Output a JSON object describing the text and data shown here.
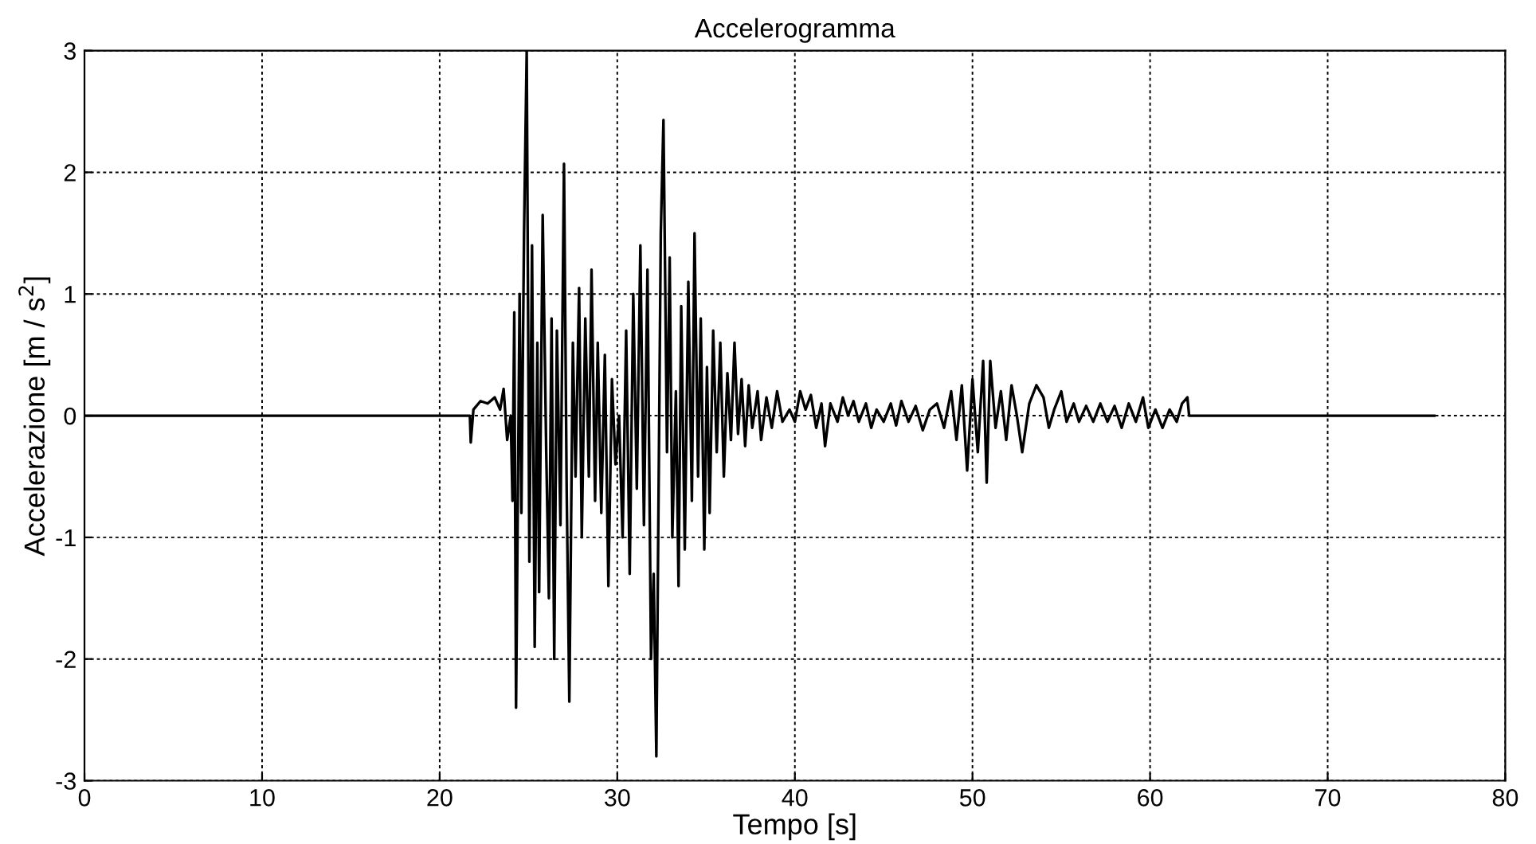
{
  "chart_data": {
    "type": "line",
    "title": "Accelerogramma",
    "xlabel": "Tempo [s]",
    "ylabel": "Accelerazione [m / s$^{2}$]",
    "xlim": [
      0,
      80
    ],
    "xticks": [
      0,
      10,
      20,
      30,
      40,
      50,
      60,
      70,
      80
    ],
    "ylim": [
      -3,
      3
    ],
    "yticks": [
      -3,
      -2,
      -1,
      0,
      1,
      2,
      3
    ],
    "grid": true,
    "line_style": "solid",
    "marker": "none",
    "series": [
      {
        "color": "#000000",
        "x": [
          0,
          21.7,
          21.75,
          21.9,
          22.3,
          22.7,
          23.1,
          23.4,
          23.6,
          23.8,
          24.0,
          24.1,
          24.2,
          24.3,
          24.5,
          24.6,
          24.75,
          24.9,
          25.05,
          25.2,
          25.35,
          25.5,
          25.6,
          25.8,
          26.0,
          26.15,
          26.3,
          26.45,
          26.6,
          26.8,
          27.0,
          27.15,
          27.3,
          27.5,
          27.65,
          27.85,
          28.0,
          28.2,
          28.4,
          28.55,
          28.75,
          28.9,
          29.1,
          29.3,
          29.5,
          29.7,
          29.9,
          30.1,
          30.3,
          30.5,
          30.7,
          30.9,
          31.1,
          31.3,
          31.5,
          31.7,
          31.9,
          32.05,
          32.2,
          32.45,
          32.6,
          32.8,
          32.95,
          33.1,
          33.3,
          33.45,
          33.6,
          33.8,
          34.0,
          34.2,
          34.35,
          34.55,
          34.7,
          34.9,
          35.05,
          35.2,
          35.4,
          35.6,
          35.8,
          36.0,
          36.2,
          36.4,
          36.6,
          36.8,
          37.0,
          37.2,
          37.4,
          37.6,
          37.9,
          38.1,
          38.4,
          38.7,
          39.0,
          39.3,
          39.7,
          40.0,
          40.3,
          40.6,
          40.9,
          41.2,
          41.5,
          41.7,
          42.0,
          42.4,
          42.7,
          43.0,
          43.3,
          43.6,
          44.0,
          44.3,
          44.6,
          45.0,
          45.4,
          45.7,
          46.0,
          46.4,
          46.8,
          47.2,
          47.6,
          48.0,
          48.4,
          48.8,
          49.1,
          49.4,
          49.7,
          50.0,
          50.3,
          50.6,
          50.8,
          51.0,
          51.3,
          51.6,
          51.9,
          52.2,
          52.5,
          52.8,
          53.2,
          53.6,
          54.0,
          54.3,
          54.6,
          55.0,
          55.3,
          55.7,
          56.0,
          56.4,
          56.8,
          57.2,
          57.6,
          58.0,
          58.4,
          58.8,
          59.2,
          59.6,
          59.9,
          60.3,
          60.7,
          61.1,
          61.5,
          61.8,
          62.1,
          62.2,
          76
        ],
        "values": [
          0,
          0,
          -0.22,
          0.05,
          0.12,
          0.1,
          0.15,
          0.05,
          0.22,
          -0.2,
          0.0,
          -0.7,
          0.85,
          -2.4,
          1.0,
          -0.8,
          1.5,
          3.0,
          -1.2,
          1.4,
          -1.9,
          0.6,
          -1.45,
          1.65,
          -0.3,
          -1.5,
          0.8,
          -2.0,
          0.7,
          -0.9,
          2.07,
          -0.6,
          -2.35,
          0.6,
          -0.5,
          1.05,
          -1.0,
          0.8,
          -0.5,
          1.2,
          -0.7,
          0.6,
          -0.8,
          0.5,
          -1.4,
          0.3,
          -0.4,
          0.0,
          -1.0,
          0.7,
          -1.3,
          1.0,
          -0.6,
          1.4,
          -0.9,
          1.2,
          -2.0,
          -1.3,
          -2.8,
          1.5,
          2.43,
          -0.3,
          1.3,
          -1.0,
          0.2,
          -1.4,
          0.9,
          -1.1,
          1.1,
          -0.7,
          1.5,
          -0.5,
          0.8,
          -1.1,
          0.4,
          -0.8,
          0.7,
          -0.3,
          0.6,
          -0.5,
          0.35,
          -0.2,
          0.6,
          -0.15,
          0.3,
          -0.25,
          0.25,
          -0.1,
          0.2,
          -0.2,
          0.15,
          -0.1,
          0.2,
          -0.05,
          0.05,
          -0.05,
          0.2,
          0.05,
          0.17,
          -0.1,
          0.1,
          -0.25,
          0.1,
          -0.05,
          0.15,
          0.0,
          0.12,
          -0.05,
          0.1,
          -0.1,
          0.05,
          -0.05,
          0.1,
          -0.08,
          0.12,
          -0.05,
          0.08,
          -0.12,
          0.05,
          0.1,
          -0.1,
          0.2,
          -0.2,
          0.25,
          -0.45,
          0.3,
          -0.3,
          0.45,
          -0.55,
          0.45,
          -0.1,
          0.2,
          -0.2,
          0.25,
          0.0,
          -0.3,
          0.1,
          0.25,
          0.15,
          -0.1,
          0.05,
          0.2,
          -0.05,
          0.1,
          -0.05,
          0.08,
          -0.05,
          0.1,
          -0.05,
          0.08,
          -0.1,
          0.1,
          -0.05,
          0.15,
          -0.1,
          0.05,
          -0.1,
          0.05,
          -0.05,
          0.1,
          0.15,
          0.0,
          0
        ]
      }
    ]
  }
}
